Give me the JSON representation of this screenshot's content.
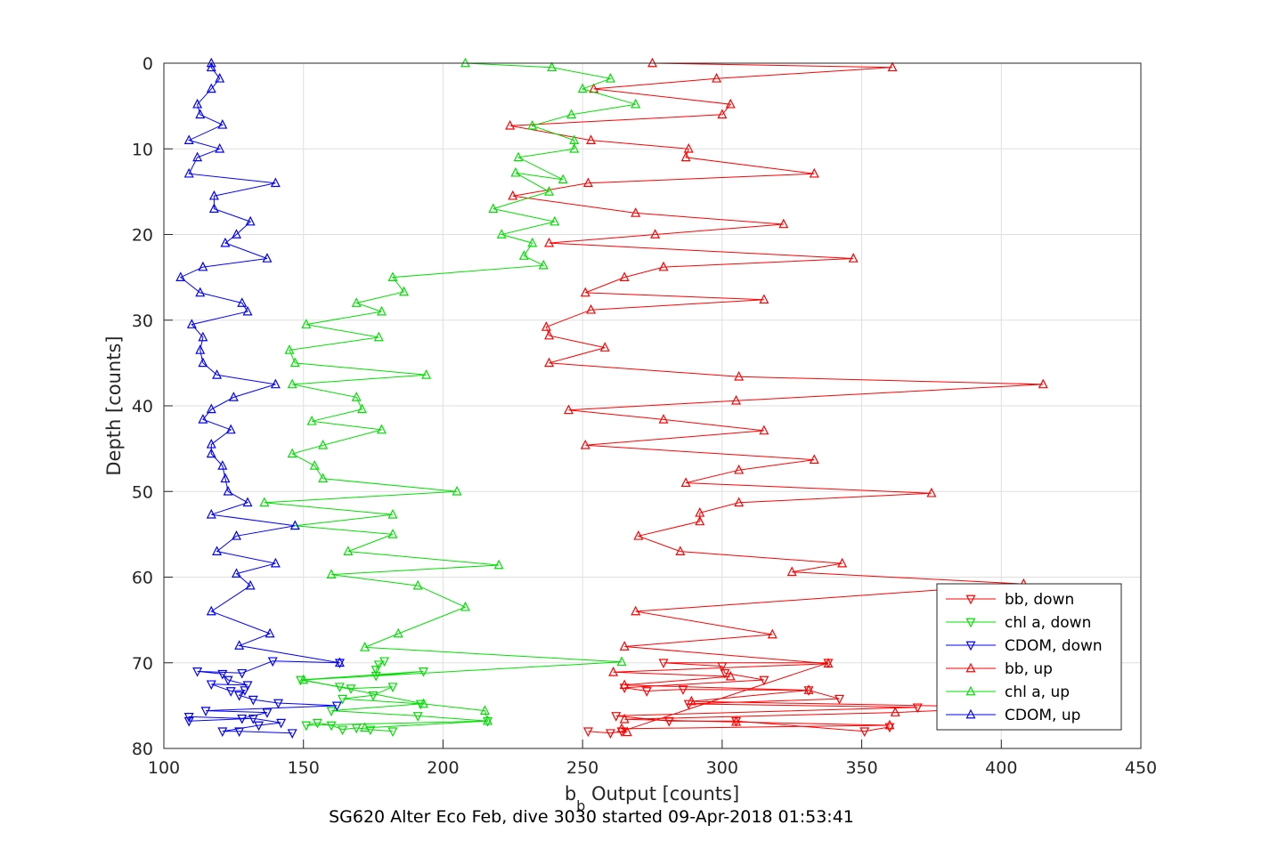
{
  "chart_data": {
    "type": "line",
    "title": "",
    "xlabel": {
      "main": "b",
      "sub": "b",
      "rest": " Output [counts]"
    },
    "ylabel": "Depth [counts]",
    "caption": "SG620 Alter Eco Feb, dive 3030 started 09-Apr-2018 01:53:41",
    "xlim": [
      100,
      450
    ],
    "ylim": [
      0,
      80
    ],
    "y_reversed": true,
    "grid": true,
    "legend_position": "bottom-right",
    "x_ticks": [
      "100",
      "150",
      "200",
      "250",
      "300",
      "350",
      "400",
      "450"
    ],
    "y_ticks": [
      "0",
      "10",
      "20",
      "30",
      "40",
      "50",
      "60",
      "70",
      "80"
    ],
    "series": [
      {
        "name": "bb, down",
        "color": "#ff0000",
        "marker": "triangle-down",
        "points": [
          [
            360,
            77.5
          ],
          [
            351,
            78
          ],
          [
            305,
            76.8
          ],
          [
            281,
            76.8
          ],
          [
            262,
            76.2
          ],
          [
            370,
            75.2
          ],
          [
            288,
            74.8
          ],
          [
            342,
            74.2
          ],
          [
            331,
            73.2
          ],
          [
            286,
            73.1
          ],
          [
            273,
            73.3
          ],
          [
            265,
            72.9
          ],
          [
            315,
            72
          ],
          [
            301,
            71.2
          ],
          [
            300,
            70.4
          ],
          [
            279,
            70
          ],
          [
            338,
            70
          ],
          [
            264,
            78
          ],
          [
            260,
            78.2
          ],
          [
            252,
            78
          ]
        ]
      },
      {
        "name": "chl a, down",
        "color": "#00e000",
        "marker": "triangle-down",
        "points": [
          [
            182,
            78
          ],
          [
            174,
            77.8
          ],
          [
            169,
            77.6
          ],
          [
            164,
            77.8
          ],
          [
            160,
            77.3
          ],
          [
            155,
            77
          ],
          [
            151,
            77.3
          ],
          [
            216,
            76.8
          ],
          [
            191,
            76.2
          ],
          [
            160,
            75.6
          ],
          [
            192,
            74.8
          ],
          [
            164,
            74.2
          ],
          [
            175,
            73.8
          ],
          [
            182,
            72.8
          ],
          [
            167,
            73
          ],
          [
            163,
            72.8
          ],
          [
            149,
            72
          ],
          [
            193,
            71
          ],
          [
            176,
            71.5
          ],
          [
            176,
            70.8
          ],
          [
            177,
            70.2
          ],
          [
            179,
            69.8
          ]
        ]
      },
      {
        "name": "CDOM, down",
        "color": "#0000ff",
        "marker": "triangle-down",
        "points": [
          [
            146,
            78.2
          ],
          [
            127,
            78
          ],
          [
            121,
            78
          ],
          [
            134,
            77.3
          ],
          [
            142,
            77
          ],
          [
            132,
            76.5
          ],
          [
            109,
            76.8
          ],
          [
            109,
            76.3
          ],
          [
            128,
            76.5
          ],
          [
            137,
            75.8
          ],
          [
            115,
            75.6
          ],
          [
            162,
            75
          ],
          [
            141,
            74.7
          ],
          [
            132,
            74.3
          ],
          [
            127,
            73.8
          ],
          [
            129,
            73.2
          ],
          [
            124,
            73.3
          ],
          [
            117,
            72.5
          ],
          [
            130,
            72.6
          ],
          [
            123,
            72
          ],
          [
            121,
            71.3
          ],
          [
            112,
            71
          ],
          [
            128,
            71.2
          ],
          [
            139,
            69.8
          ],
          [
            163,
            70
          ]
        ]
      },
      {
        "name": "bb, up",
        "color": "#ff0000",
        "marker": "triangle-up",
        "points": [
          [
            275,
            0
          ],
          [
            361,
            0.5
          ],
          [
            298,
            1.8
          ],
          [
            254,
            3
          ],
          [
            303,
            4.8
          ],
          [
            300,
            6
          ],
          [
            224,
            7.3
          ],
          [
            253,
            9
          ],
          [
            288,
            10
          ],
          [
            287,
            11
          ],
          [
            333,
            12.9
          ],
          [
            252,
            14
          ],
          [
            225,
            15.5
          ],
          [
            269,
            17.5
          ],
          [
            322,
            18.8
          ],
          [
            276,
            20
          ],
          [
            238,
            21
          ],
          [
            347,
            22.8
          ],
          [
            279,
            23.8
          ],
          [
            265,
            25
          ],
          [
            251,
            26.8
          ],
          [
            315,
            27.6
          ],
          [
            253,
            28.8
          ],
          [
            237,
            30.8
          ],
          [
            238,
            31.8
          ],
          [
            258,
            33.2
          ],
          [
            238,
            35
          ],
          [
            306,
            36.6
          ],
          [
            415,
            37.5
          ],
          [
            305,
            39.4
          ],
          [
            245,
            40.5
          ],
          [
            279,
            41.6
          ],
          [
            315,
            42.9
          ],
          [
            251,
            44.6
          ],
          [
            333,
            46.3
          ],
          [
            306,
            47.5
          ],
          [
            287,
            49
          ],
          [
            375,
            50.2
          ],
          [
            306,
            51.3
          ],
          [
            292,
            52.5
          ],
          [
            292,
            53.5
          ],
          [
            270,
            55.2
          ],
          [
            285,
            57
          ],
          [
            343,
            58.4
          ],
          [
            325,
            59.4
          ],
          [
            408,
            60.8
          ],
          [
            269,
            64
          ],
          [
            318,
            66.7
          ],
          [
            265,
            68.1
          ],
          [
            338,
            70.1
          ],
          [
            261,
            71.1
          ],
          [
            303,
            71.6
          ],
          [
            265,
            72.6
          ],
          [
            331,
            73.2
          ],
          [
            289,
            74.5
          ],
          [
            405,
            75.2
          ],
          [
            362,
            75.8
          ],
          [
            265,
            76.6
          ],
          [
            305,
            76.9
          ],
          [
            360,
            77.3
          ],
          [
            264,
            77.7
          ],
          [
            266,
            78.1
          ]
        ]
      },
      {
        "name": "chl a, up",
        "color": "#00e000",
        "marker": "triangle-up",
        "points": [
          [
            208,
            0
          ],
          [
            239,
            0.5
          ],
          [
            260,
            1.8
          ],
          [
            250,
            3
          ],
          [
            269,
            4.8
          ],
          [
            246,
            6
          ],
          [
            232,
            7.3
          ],
          [
            247,
            9
          ],
          [
            247,
            10
          ],
          [
            227,
            11
          ],
          [
            243,
            13.6
          ],
          [
            226,
            12.8
          ],
          [
            238,
            15
          ],
          [
            218,
            17
          ],
          [
            240,
            18.5
          ],
          [
            221,
            20
          ],
          [
            232,
            21
          ],
          [
            229,
            22.5
          ],
          [
            236,
            23.6
          ],
          [
            182,
            25
          ],
          [
            186,
            26.7
          ],
          [
            169,
            28
          ],
          [
            178,
            29
          ],
          [
            151,
            30.5
          ],
          [
            177,
            32
          ],
          [
            145,
            33.5
          ],
          [
            147,
            35
          ],
          [
            194,
            36.4
          ],
          [
            146,
            37.5
          ],
          [
            169,
            39
          ],
          [
            171,
            40.4
          ],
          [
            153,
            41.8
          ],
          [
            178,
            42.8
          ],
          [
            157,
            44.6
          ],
          [
            146,
            45.6
          ],
          [
            154,
            47
          ],
          [
            157,
            48.5
          ],
          [
            205,
            50
          ],
          [
            136,
            51.3
          ],
          [
            182,
            52.7
          ],
          [
            147,
            54
          ],
          [
            182,
            55
          ],
          [
            166,
            57
          ],
          [
            220,
            58.6
          ],
          [
            160,
            59.7
          ],
          [
            191,
            61
          ],
          [
            208,
            63.5
          ],
          [
            184,
            66.6
          ],
          [
            172,
            68.2
          ],
          [
            264,
            69.9
          ],
          [
            150,
            72
          ],
          [
            193,
            74.8
          ],
          [
            215,
            75.6
          ],
          [
            216,
            76.8
          ],
          [
            172,
            77.6
          ]
        ]
      },
      {
        "name": "CDOM, up",
        "color": "#0000ff",
        "marker": "triangle-up",
        "points": [
          [
            117,
            0
          ],
          [
            117,
            0.5
          ],
          [
            120,
            1.8
          ],
          [
            117,
            3
          ],
          [
            112,
            4.8
          ],
          [
            113,
            6
          ],
          [
            121,
            7.2
          ],
          [
            109,
            9
          ],
          [
            120,
            10
          ],
          [
            112,
            11
          ],
          [
            109,
            12.9
          ],
          [
            140,
            14
          ],
          [
            118,
            15.5
          ],
          [
            118,
            17
          ],
          [
            131,
            18.5
          ],
          [
            126,
            20
          ],
          [
            122,
            21
          ],
          [
            137,
            22.8
          ],
          [
            114,
            23.8
          ],
          [
            106,
            25
          ],
          [
            113,
            26.8
          ],
          [
            128,
            28
          ],
          [
            130,
            29
          ],
          [
            110,
            30.5
          ],
          [
            114,
            32
          ],
          [
            113,
            33.5
          ],
          [
            114,
            35
          ],
          [
            119,
            36.4
          ],
          [
            140,
            37.5
          ],
          [
            125,
            39
          ],
          [
            117,
            40.4
          ],
          [
            114,
            41.6
          ],
          [
            124,
            42.8
          ],
          [
            117,
            44.5
          ],
          [
            117,
            45.6
          ],
          [
            121,
            47
          ],
          [
            122,
            48.5
          ],
          [
            123,
            50
          ],
          [
            130,
            51.3
          ],
          [
            117,
            52.7
          ],
          [
            147,
            54
          ],
          [
            126,
            55.2
          ],
          [
            119,
            57
          ],
          [
            140,
            58.4
          ],
          [
            126,
            59.6
          ],
          [
            131,
            61
          ],
          [
            117,
            64
          ],
          [
            138,
            66.6
          ],
          [
            127,
            68
          ],
          [
            163,
            70
          ]
        ]
      }
    ]
  }
}
